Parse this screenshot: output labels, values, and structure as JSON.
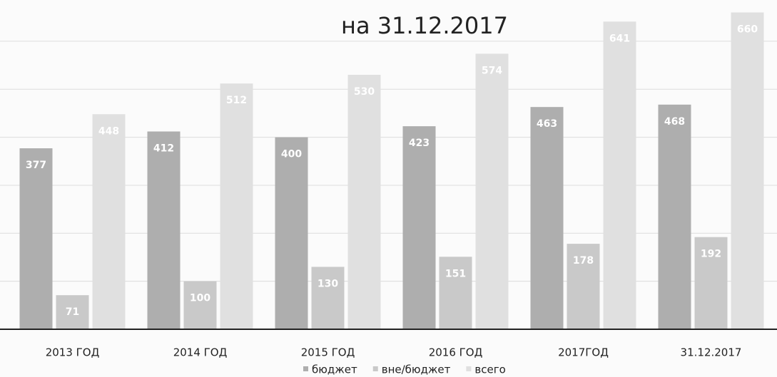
{
  "chart_data": {
    "type": "bar",
    "title": "на 31.12.2017",
    "categories": [
      "2013 ГОД",
      "2014 ГОД",
      "2015 ГОД",
      "2016 ГОД",
      "2017ГОД",
      "31.12.2017"
    ],
    "series": [
      {
        "name": "бюджет",
        "color": "#aeaeae",
        "values": [
          377,
          412,
          400,
          423,
          463,
          468
        ]
      },
      {
        "name": "вне/бюджет",
        "color": "#c9c9c9",
        "values": [
          71,
          100,
          130,
          151,
          178,
          192
        ]
      },
      {
        "name": "всего",
        "color": "#e0e0e0",
        "values": [
          448,
          512,
          530,
          574,
          641,
          660
        ]
      }
    ],
    "ylim": [
      0,
      680
    ],
    "yticks": [
      0,
      100,
      200,
      300,
      400,
      500,
      600
    ],
    "grid": true,
    "legend": "bottom"
  }
}
